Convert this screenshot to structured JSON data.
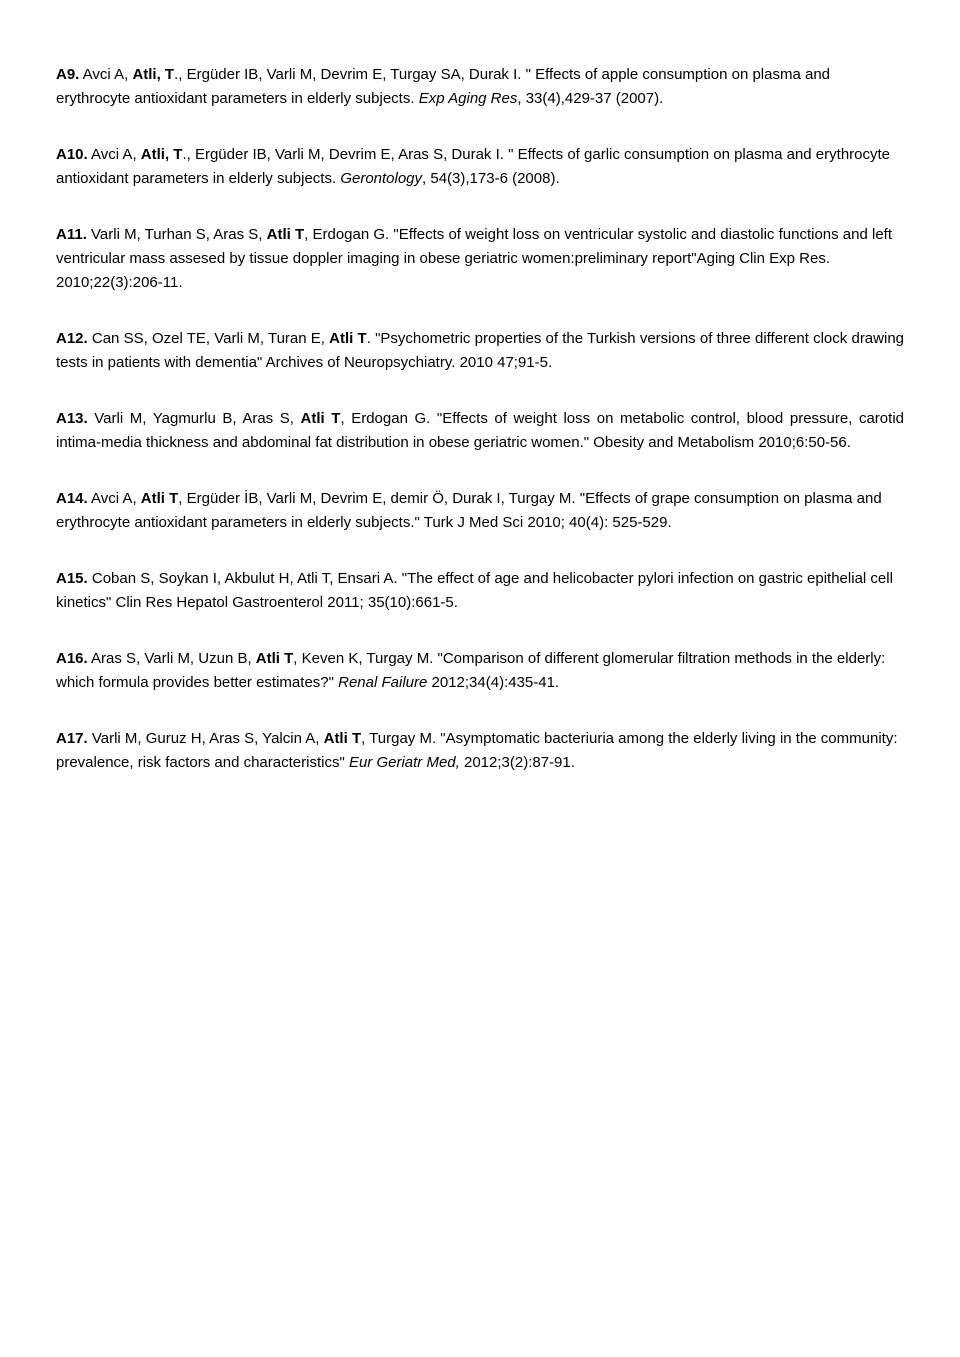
{
  "entries": [
    {
      "justify": false,
      "segments": [
        {
          "t": "A9.",
          "b": true
        },
        {
          "t": " Avci A, "
        },
        {
          "t": "Atli, T",
          "b": true
        },
        {
          "t": "., Ergüder IB, Varli M, Devrim E, Turgay SA, Durak I. \" Effects of apple consumption on plasma and erythrocyte antioxidant parameters in elderly subjects. "
        },
        {
          "t": "Exp Aging Res",
          "i": true
        },
        {
          "t": ", 33(4),429-37 (2007)."
        }
      ]
    },
    {
      "justify": false,
      "segments": [
        {
          "t": "A10.",
          "b": true
        },
        {
          "t": " Avci A, "
        },
        {
          "t": "Atli, T",
          "b": true
        },
        {
          "t": "., Ergüder IB, Varli M, Devrim E, Aras S, Durak I. \" Effects of garlic consumption on plasma and erythrocyte antioxidant parameters in elderly subjects. "
        },
        {
          "t": "Gerontology",
          "i": true
        },
        {
          "t": ", 54(3),173-6 (2008)."
        }
      ]
    },
    {
      "justify": false,
      "segments": [
        {
          "t": "A11.",
          "b": true
        },
        {
          "t": " Varli M, Turhan S, Aras S, "
        },
        {
          "t": "Atli T",
          "b": true
        },
        {
          "t": ", Erdogan G. \"Effects of weight loss on ventricular systolic and diastolic functions and left ventricular mass assesed by tissue doppler imaging in obese geriatric women:preliminary report\"Aging Clin Exp Res. 2010;22(3):206-11."
        }
      ]
    },
    {
      "justify": true,
      "segments": [
        {
          "t": "A12.",
          "b": true
        },
        {
          "t": " Can SS, Ozel TE, Varli M, Turan E, "
        },
        {
          "t": "Atli T",
          "b": true
        },
        {
          "t": ". \"Psychometric properties of the Turkish versions of three different clock drawing tests in patients with dementia\" Archives of Neuropsychiatry. 2010 47;91-5."
        }
      ]
    },
    {
      "justify": true,
      "segments": [
        {
          "t": "A13.",
          "b": true
        },
        {
          "t": " Varli M, Yagmurlu B, Aras S, "
        },
        {
          "t": "Atli T",
          "b": true
        },
        {
          "t": ", Erdogan G. \"Effects of weight loss on metabolic control, blood pressure, carotid intima-media thickness and abdominal fat distribution in obese geriatric women.\" Obesity and Metabolism 2010;6:50-56."
        }
      ]
    },
    {
      "justify": false,
      "segments": [
        {
          "t": "A14.",
          "b": true
        },
        {
          "t": " Avci A, "
        },
        {
          "t": "Atli T",
          "b": true
        },
        {
          "t": ", Ergüder İB, Varli M, Devrim E, demir Ö, Durak I, Turgay M. \"Effects of grape consumption on plasma and erythrocyte antioxidant parameters in elderly subjects.\" Turk J Med Sci 2010; 40(4): 525-529."
        }
      ]
    },
    {
      "justify": false,
      "segments": [
        {
          "t": "A15.",
          "b": true
        },
        {
          "t": " Coban S, Soykan I, Akbulut H, Atli T, Ensari A. \"The effect of age and helicobacter pylori infection on gastric epithelial cell kinetics\" Clin Res Hepatol Gastroenterol 2011; 35(10):661-5."
        }
      ]
    },
    {
      "justify": false,
      "segments": [
        {
          "t": "A16.",
          "b": true
        },
        {
          "t": " Aras S, Varli M, Uzun B, "
        },
        {
          "t": "Atli T",
          "b": true
        },
        {
          "t": ", Keven K, Turgay M. \"Comparison of different glomerular filtration methods in the elderly: which formula provides better estimates?\" "
        },
        {
          "t": "Renal Failure",
          "i": true
        },
        {
          "t": " 2012;34(4):435-41."
        }
      ]
    },
    {
      "justify": false,
      "segments": [
        {
          "t": "A17.",
          "b": true
        },
        {
          "t": " Varli M, Guruz H, Aras S, Yalcin A, "
        },
        {
          "t": "Atli T",
          "b": true
        },
        {
          "t": ", Turgay M. \"Asymptomatic bacteriuria among the elderly living in the community: prevalence, risk factors and characteristics\" "
        },
        {
          "t": "Eur Geriatr Med,",
          "i": true
        },
        {
          "t": " 2012;3(2):87-91."
        }
      ]
    }
  ]
}
